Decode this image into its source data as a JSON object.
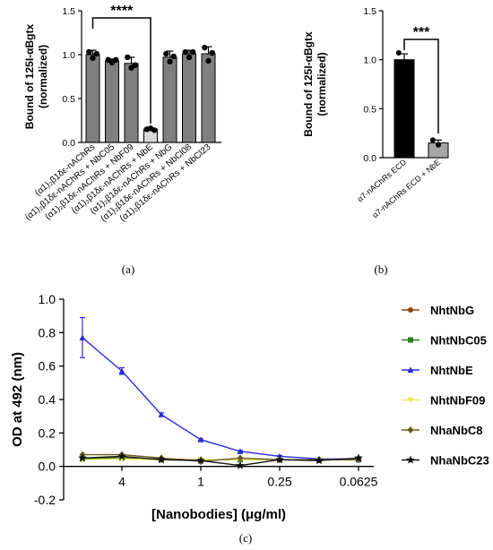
{
  "panels": {
    "a": {
      "caption": "(a)"
    },
    "b": {
      "caption": "(b)"
    },
    "c": {
      "caption": "(c)"
    }
  },
  "chart_data": [
    {
      "id": "a",
      "type": "bar",
      "ylabel_line1": "Bound of 125I-αBgtx",
      "ylabel_line2": "(normalized)",
      "ylim": [
        0,
        1.5
      ],
      "yticks": [
        "0.0",
        "0.5",
        "1.0",
        "1.5"
      ],
      "categories": [
        "(α1)₂β1δε-nAChRs",
        "(α1)₂β1δε-nAChRs + NbC05",
        "(α1)₂β1δε-nAChRs + NbF09",
        "(α1)₂β1δε-nAChRs + NbE",
        "(α1)₂β1δε-nAChRs + NbG",
        "(α1)₂β1δε-nAChRs + NbCl08",
        "(α1)₂β1δε-nAChRs + NbCl23"
      ],
      "values": [
        1.0,
        0.93,
        0.9,
        0.15,
        0.97,
        1.01,
        1.01
      ],
      "errors": [
        0.05,
        0.02,
        0.07,
        0.01,
        0.07,
        0.04,
        0.08
      ],
      "points": [
        [
          1.03,
          0.96,
          1.01
        ],
        [
          0.94,
          0.91,
          0.94
        ],
        [
          0.97,
          0.85,
          0.88
        ],
        [
          0.15,
          0.16,
          0.14
        ],
        [
          1.01,
          0.92,
          0.98
        ],
        [
          1.03,
          0.97,
          1.03
        ],
        [
          1.08,
          0.93,
          1.02
        ]
      ],
      "bar_colors": [
        "#7f7f7f",
        "#7f7f7f",
        "#7f7f7f",
        "#d9d9d9",
        "#7f7f7f",
        "#7f7f7f",
        "#7f7f7f"
      ],
      "significance": {
        "label": "****",
        "from_index": 0,
        "to_index": 3
      }
    },
    {
      "id": "b",
      "type": "bar",
      "ylabel_line1": "Bound of 125I-αBgtx",
      "ylabel_line2": "(normalized)",
      "ylim": [
        0,
        1.5
      ],
      "yticks": [
        "0.0",
        "0.5",
        "1.0",
        "1.5"
      ],
      "categories": [
        "α7-nAChRs ECD",
        "α7-nAChRs ECD + NbE"
      ],
      "values": [
        1.0,
        0.15
      ],
      "errors": [
        0.06,
        0.03
      ],
      "points": [
        [
          1.07,
          0.98
        ],
        [
          0.18,
          0.13
        ]
      ],
      "bar_colors": [
        "#000000",
        "#a6a6a6"
      ],
      "significance": {
        "label": "***",
        "from_index": 0,
        "to_index": 1
      }
    },
    {
      "id": "c",
      "type": "line",
      "ylabel": "OD at  492 (nm)",
      "xlabel": "[Nanobodies] (μg/ml)",
      "ylim": [
        -0.2,
        1.0
      ],
      "yticks": [
        "-0.2",
        "0.0",
        "0.2",
        "0.4",
        "0.6",
        "0.8",
        "1.0"
      ],
      "x_scale": "log2, reversed",
      "x_ticks": [
        4,
        1,
        0.25,
        0.0625
      ],
      "x_tick_labels": [
        "4",
        "1",
        "0.25",
        "0.0625"
      ],
      "x": [
        8,
        4,
        2,
        1,
        0.5,
        0.25,
        0.125,
        0.0625
      ],
      "series": [
        {
          "name": "NhtNbG",
          "color": "#8b4513",
          "marker": "circle",
          "values": [
            0.05,
            0.05,
            0.045,
            0.04,
            0.04,
            0.04,
            0.04,
            0.04
          ]
        },
        {
          "name": "NhtNbC05",
          "color": "#2e7d1f",
          "marker": "square",
          "values": [
            0.045,
            0.05,
            0.04,
            0.04,
            0.04,
            0.04,
            0.04,
            0.04
          ]
        },
        {
          "name": "NhtNbE",
          "color": "#2b2bd9",
          "marker": "triangle",
          "values": [
            0.77,
            0.57,
            0.31,
            0.16,
            0.09,
            0.06,
            0.045,
            0.045
          ],
          "errors": [
            0.12,
            0.02,
            0.01,
            0.005,
            0.005,
            0.005,
            0.005,
            0.005
          ]
        },
        {
          "name": "NhtNbF09",
          "color": "#e6e65c",
          "marker": "triangle-down",
          "values": [
            0.04,
            0.045,
            0.04,
            0.04,
            0.04,
            0.04,
            0.04,
            0.045
          ]
        },
        {
          "name": "NhaNbC8",
          "color": "#6b5a1e",
          "marker": "diamond",
          "values": [
            0.07,
            0.07,
            0.05,
            0.03,
            0.05,
            0.04,
            0.04,
            0.04
          ]
        },
        {
          "name": "NhaNbC23",
          "color": "#111111",
          "marker": "star",
          "values": [
            0.05,
            0.06,
            0.04,
            0.035,
            0.005,
            0.04,
            0.035,
            0.05
          ]
        }
      ]
    }
  ]
}
